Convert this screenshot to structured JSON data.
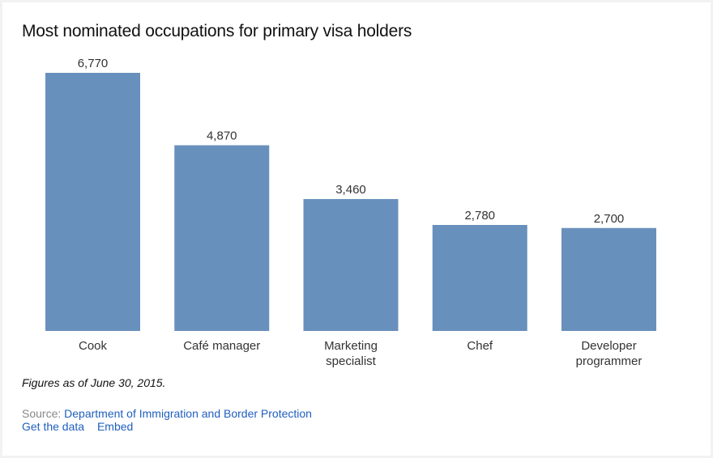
{
  "chart_data": {
    "type": "bar",
    "title": "Most nominated occupations for primary visa holders",
    "categories": [
      [
        "Cook"
      ],
      [
        "Café manager"
      ],
      [
        "Marketing",
        "specialist"
      ],
      [
        "Chef"
      ],
      [
        "Developer",
        "programmer"
      ]
    ],
    "values": [
      6770,
      4870,
      3460,
      2780,
      2700
    ],
    "value_labels": [
      "6,770",
      "4,870",
      "3,460",
      "2,780",
      "2,700"
    ],
    "xlabel": "",
    "ylabel": "",
    "ylim": [
      0,
      6770
    ],
    "grid": false,
    "bar_color": "#6890bc"
  },
  "footer": {
    "note": "Figures as of June 30, 2015.",
    "source_label": "Source: ",
    "source_link": "Department of Immigration and Border Protection",
    "get_data": "Get the data",
    "embed": "Embed"
  }
}
